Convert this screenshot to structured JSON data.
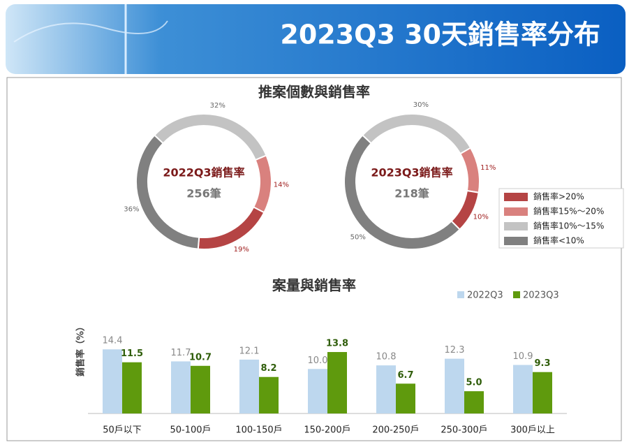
{
  "header": {
    "title": "2023Q3 30天銷售率分布"
  },
  "chart_data": [
    {
      "type": "donut",
      "title": "推案個數與銷售率",
      "center_title": "2022Q3銷售率",
      "center_text": "256筆",
      "categories": [
        "銷售率>20%",
        "銷售率15%～20%",
        "銷售率10%～15%",
        "銷售率<10%"
      ],
      "colors": [
        "#b54444",
        "#d9817e",
        "#c3c3c3",
        "#808080"
      ],
      "values": [
        19,
        14,
        32,
        36
      ],
      "value_labels": [
        "19%",
        "14%",
        "32%",
        "36%"
      ]
    },
    {
      "type": "donut",
      "center_title": "2023Q3銷售率",
      "center_text": "218筆",
      "categories": [
        "銷售率>20%",
        "銷售率15%～20%",
        "銷售率10%～15%",
        "銷售率<10%"
      ],
      "colors": [
        "#b54444",
        "#d9817e",
        "#c3c3c3",
        "#808080"
      ],
      "values": [
        10,
        11,
        30,
        50
      ],
      "value_labels": [
        "10%",
        "11%",
        "30%",
        "50%"
      ]
    },
    {
      "type": "bar",
      "title": "案量與銷售率",
      "y_label": "銷售率（%）",
      "categories": [
        "50戶以下",
        "50-100戶",
        "100-150戶",
        "150-200戶",
        "200-250戶",
        "250-300戶",
        "300戶以上"
      ],
      "ylim": [
        0,
        16
      ],
      "series": [
        {
          "name": "2022Q3",
          "color": "#bdd7ee",
          "values": [
            14.4,
            11.7,
            12.1,
            10.0,
            10.8,
            12.3,
            10.9
          ],
          "value_labels": [
            "14.4",
            "11.7",
            "12.1",
            "10.0",
            "10.8",
            "12.3",
            "10.9"
          ]
        },
        {
          "name": "2023Q3",
          "color": "#5f9a0d",
          "values": [
            11.5,
            10.7,
            8.2,
            13.8,
            6.7,
            5.0,
            9.3
          ],
          "value_labels": [
            "11.5",
            "10.7",
            "8.2",
            "13.8",
            "6.7",
            "5.0",
            "9.3"
          ]
        }
      ]
    }
  ]
}
